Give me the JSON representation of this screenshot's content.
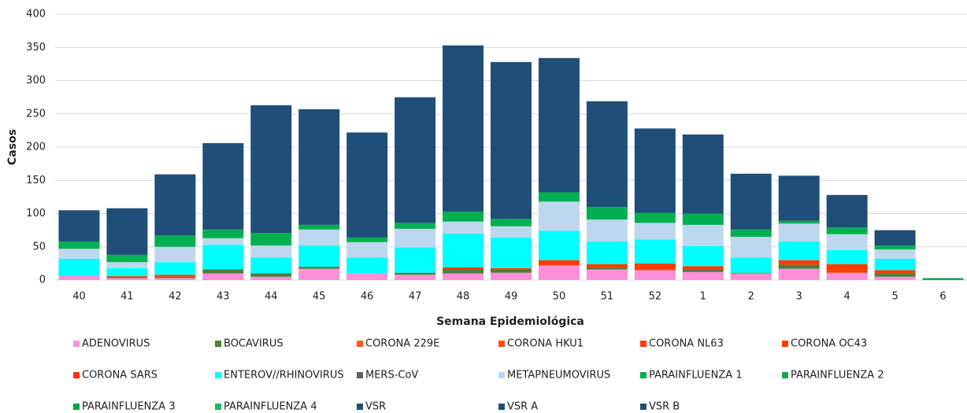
{
  "chart_data": {
    "type": "stacked_bar",
    "x_label": "Semana Epidemiológica",
    "y_label": "Casos",
    "categories": [
      "40",
      "41",
      "42",
      "43",
      "44",
      "45",
      "46",
      "47",
      "48",
      "49",
      "50",
      "51",
      "52",
      "1",
      "2",
      "3",
      "4",
      "5",
      "6"
    ],
    "ylim": [
      0,
      400
    ],
    "yticks": [
      0,
      50,
      100,
      150,
      200,
      250,
      300,
      350,
      400
    ],
    "grid": true,
    "series": [
      {
        "name": "ADENOVIRUS",
        "color": "#ff8fd8",
        "values": [
          6,
          3,
          3,
          10,
          5,
          17,
          10,
          8,
          10,
          11,
          22,
          16,
          15,
          12,
          10,
          17,
          11,
          5,
          0
        ]
      },
      {
        "name": "BOCAVIRUS",
        "color": "#4f7f3a",
        "values": [
          0,
          2,
          2,
          6,
          5,
          3,
          0,
          3,
          6,
          5,
          0,
          3,
          0,
          4,
          1,
          6,
          0,
          5,
          0
        ]
      },
      {
        "name": "CORONA 229E",
        "color": "#ff5a1f",
        "values": [
          0,
          0,
          0,
          0,
          0,
          0,
          0,
          0,
          0,
          0,
          0,
          0,
          0,
          0,
          0,
          0,
          0,
          0,
          0
        ]
      },
      {
        "name": "CORONA HKU1",
        "color": "#ff4a1a",
        "values": [
          0,
          0,
          0,
          0,
          0,
          0,
          0,
          0,
          0,
          0,
          0,
          0,
          0,
          0,
          0,
          0,
          0,
          0,
          0
        ]
      },
      {
        "name": "CORONA NL63",
        "color": "#ff3d10",
        "values": [
          0,
          0,
          0,
          0,
          0,
          0,
          0,
          0,
          0,
          0,
          0,
          0,
          0,
          0,
          0,
          0,
          0,
          0,
          0
        ]
      },
      {
        "name": "CORONA OC43",
        "color": "#ff3d00",
        "values": [
          0,
          1,
          3,
          0,
          0,
          0,
          0,
          0,
          3,
          2,
          8,
          5,
          10,
          5,
          0,
          7,
          13,
          5,
          0
        ]
      },
      {
        "name": "CORONA SARS",
        "color": "#ff3300",
        "values": [
          0,
          0,
          0,
          0,
          0,
          0,
          0,
          0,
          0,
          0,
          0,
          0,
          0,
          0,
          0,
          0,
          0,
          0,
          0
        ]
      },
      {
        "name": "ENTEROV//RHINOVIRUS",
        "color": "#00ffff",
        "values": [
          26,
          12,
          19,
          37,
          24,
          32,
          24,
          38,
          51,
          46,
          44,
          34,
          36,
          30,
          23,
          28,
          21,
          17,
          0
        ]
      },
      {
        "name": "MERS-CoV",
        "color": "#606060",
        "values": [
          0,
          0,
          0,
          0,
          0,
          0,
          0,
          0,
          0,
          0,
          0,
          0,
          0,
          0,
          0,
          0,
          0,
          0,
          0
        ]
      },
      {
        "name": "METAPNEUMOVIRUS",
        "color": "#bdd7ee",
        "values": [
          15,
          9,
          23,
          10,
          18,
          24,
          23,
          28,
          18,
          17,
          44,
          33,
          25,
          32,
          31,
          27,
          24,
          14,
          0
        ]
      },
      {
        "name": "PARAINFLUENZA 1",
        "color": "#00b050",
        "values": [
          11,
          11,
          17,
          13,
          19,
          7,
          7,
          9,
          15,
          11,
          14,
          19,
          15,
          17,
          11,
          4,
          10,
          6,
          3
        ]
      },
      {
        "name": "PARAINFLUENZA 2",
        "color": "#1aa84f",
        "values": [
          0,
          0,
          0,
          0,
          0,
          0,
          0,
          0,
          0,
          0,
          0,
          0,
          0,
          0,
          0,
          0,
          0,
          0,
          0
        ]
      },
      {
        "name": "PARAINFLUENZA 3",
        "color": "#0a9f4a",
        "values": [
          0,
          0,
          0,
          0,
          0,
          0,
          0,
          0,
          0,
          0,
          0,
          0,
          0,
          0,
          0,
          0,
          0,
          0,
          0
        ]
      },
      {
        "name": "PARAINFLUENZA 4",
        "color": "#1db954",
        "values": [
          0,
          0,
          0,
          0,
          0,
          0,
          0,
          0,
          0,
          0,
          0,
          0,
          0,
          0,
          0,
          0,
          0,
          0,
          0
        ]
      },
      {
        "name": "VSR",
        "color": "#1f4e79",
        "values": [
          47,
          70,
          92,
          130,
          192,
          174,
          158,
          189,
          250,
          236,
          202,
          159,
          127,
          119,
          84,
          68,
          49,
          23,
          0
        ]
      },
      {
        "name": "VSR A",
        "color": "#1f4e79",
        "values": [
          0,
          0,
          0,
          0,
          0,
          0,
          0,
          0,
          0,
          0,
          0,
          0,
          0,
          0,
          0,
          0,
          0,
          0,
          0
        ]
      },
      {
        "name": "VSR B",
        "color": "#1f4e79",
        "values": [
          0,
          0,
          0,
          0,
          0,
          0,
          0,
          0,
          0,
          0,
          0,
          0,
          0,
          0,
          0,
          0,
          0,
          0,
          0
        ]
      }
    ]
  }
}
